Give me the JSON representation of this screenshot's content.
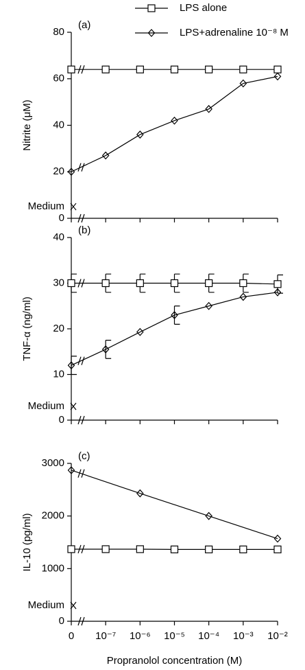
{
  "chart_data": [
    {
      "type": "line",
      "panel_label": "(a)",
      "ylabel": "Nitrite (μM)",
      "xlim": [
        0,
        6
      ],
      "xticks": [
        0,
        1,
        2,
        3,
        4,
        5,
        6
      ],
      "ylim": [
        0,
        80
      ],
      "yticks": [
        0,
        20,
        40,
        60,
        80
      ],
      "legend": "top",
      "medium": {
        "label": "Medium",
        "value": 5
      },
      "series": [
        {
          "name": "LPS alone",
          "marker": "square",
          "color": "#000000",
          "x": [
            0,
            1,
            2,
            3,
            4,
            5,
            6
          ],
          "values": [
            64,
            64,
            64,
            64,
            64,
            64,
            64
          ]
        },
        {
          "name": "LPS+adrenaline 10⁻⁸ M",
          "marker": "diamond",
          "color": "#000000",
          "x": [
            0,
            1,
            2,
            3,
            4,
            5,
            6
          ],
          "values": [
            20,
            27,
            36,
            42,
            47,
            58,
            61
          ]
        }
      ]
    },
    {
      "type": "line",
      "panel_label": "(b)",
      "ylabel": "TNF-α (ng/ml)",
      "xlim": [
        0,
        6
      ],
      "xticks": [
        0,
        1,
        2,
        3,
        4,
        5,
        6
      ],
      "ylim": [
        0,
        40
      ],
      "yticks": [
        0,
        10,
        20,
        30,
        40
      ],
      "medium": {
        "label": "Medium",
        "value": 3
      },
      "series": [
        {
          "marker": "square",
          "color": "#000000",
          "x": [
            0,
            1,
            2,
            3,
            4,
            5,
            6
          ],
          "values": [
            30,
            30,
            30,
            30,
            30,
            30,
            29.8
          ],
          "errors": [
            2,
            2,
            2,
            2,
            2,
            2,
            2
          ]
        },
        {
          "marker": "diamond",
          "color": "#000000",
          "x": [
            0,
            1,
            2,
            3,
            4,
            5,
            6
          ],
          "values": [
            12,
            15.5,
            19.3,
            23,
            25,
            27,
            28
          ],
          "errors": [
            2,
            2,
            0,
            2,
            0,
            0,
            0
          ]
        }
      ]
    },
    {
      "type": "line",
      "panel_label": "(c)",
      "ylabel": "IL-10 (pg/ml)",
      "xlabel": "Propranolol concentration (M)",
      "xlim": [
        0,
        6
      ],
      "xticks": [
        0,
        {
          "value": 1,
          "label": "10⁻⁷"
        },
        {
          "value": 2,
          "label": "10⁻⁶"
        },
        {
          "value": 3,
          "label": "10⁻⁵"
        },
        {
          "value": 4,
          "label": "10⁻⁴"
        },
        {
          "value": 5,
          "label": "10⁻³"
        },
        {
          "value": 6,
          "label": "10⁻²"
        }
      ],
      "ylim": [
        0,
        3000
      ],
      "yticks": [
        0,
        1000,
        2000,
        3000
      ],
      "medium": {
        "label": "Medium",
        "value": 300
      },
      "series": [
        {
          "marker": "square",
          "color": "#000000",
          "x": [
            0,
            1,
            2,
            3,
            4,
            5,
            6
          ],
          "values": [
            1370,
            1370,
            1370,
            1365,
            1365,
            1365,
            1365
          ]
        },
        {
          "marker": "diamond",
          "color": "#000000",
          "x": [
            0,
            2,
            4,
            6
          ],
          "values": [
            2870,
            2430,
            2000,
            1570
          ]
        }
      ]
    }
  ]
}
